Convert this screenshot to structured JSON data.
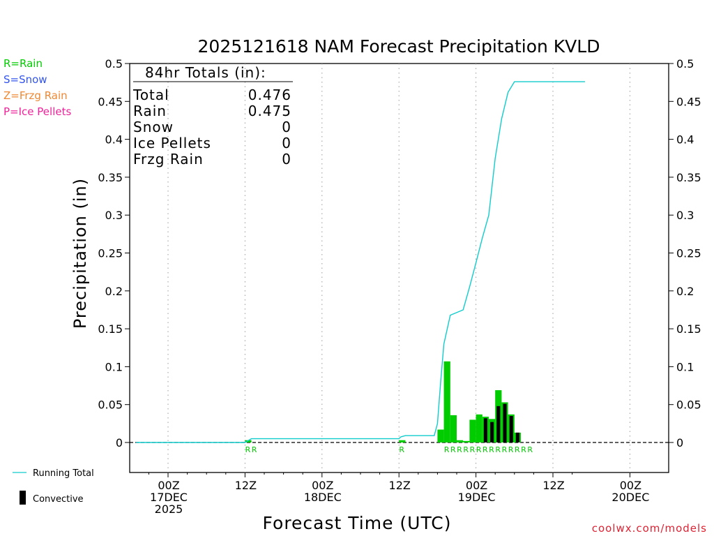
{
  "colors": {
    "rain": "#00cc00",
    "snow": "#3355ee",
    "frzg_rain": "#ee8833",
    "ice_pellets": "#ee2299",
    "running_total": "#11cccc",
    "convective": "#000000",
    "credit": "#dd2233"
  },
  "legend_ptypes": [
    {
      "text": "R=Rain",
      "color_key": "rain"
    },
    {
      "text": "S=Snow",
      "color_key": "snow"
    },
    {
      "text": "Z=Frzg Rain",
      "color_key": "frzg_rain"
    },
    {
      "text": "P=Ice Pellets",
      "color_key": "ice_pellets"
    }
  ],
  "legend_series": {
    "running_total": "Running Total",
    "convective": "Convective"
  },
  "credit": "coolwx.com/models",
  "chart_data": {
    "type": "bar",
    "title": "2025121618 NAM Forecast Precipitation KVLD",
    "xlabel": "Forecast Time (UTC)",
    "ylabel": "Precipitation (in)",
    "ylim": [
      -0.04,
      0.5
    ],
    "y_ticks": [
      "0",
      "0.05",
      "0.1",
      "0.15",
      "0.2",
      "0.25",
      "0.3",
      "0.35",
      "0.4",
      "0.45",
      "0.5"
    ],
    "y_tick_values": [
      0,
      0.05,
      0.1,
      0.15,
      0.2,
      0.25,
      0.3,
      0.35,
      0.4,
      0.45,
      0.5
    ],
    "x_range_hours": [
      -5,
      65
    ],
    "x_ticks": [
      {
        "hour": 0,
        "lines": [
          "00Z",
          "17DEC",
          "2025"
        ]
      },
      {
        "hour": 12,
        "lines": [
          "12Z"
        ]
      },
      {
        "hour": 24,
        "lines": [
          "00Z",
          "18DEC"
        ]
      },
      {
        "hour": 36,
        "lines": [
          "12Z"
        ]
      },
      {
        "hour": 48,
        "lines": [
          "00Z",
          "19DEC"
        ]
      },
      {
        "hour": 60,
        "lines": [
          "12Z"
        ]
      },
      {
        "hour": 72,
        "lines": [
          "00Z",
          "20DEC"
        ]
      }
    ],
    "totals": {
      "header": "84hr Totals (in):",
      "rows": [
        {
          "label": "Total",
          "value": "0.476"
        },
        {
          "label": "Rain",
          "value": "0.475"
        },
        {
          "label": "Snow",
          "value": "0"
        },
        {
          "label": "Ice Pellets",
          "value": "0"
        },
        {
          "label": "Frzg Rain",
          "value": "0"
        }
      ]
    },
    "bar_width_hours": 1,
    "series": [
      {
        "name": "Running Total",
        "type": "line",
        "x": [
          -5,
          12,
          13,
          36,
          36.3,
          37,
          41.5,
          42,
          42.5,
          43,
          44,
          46,
          47,
          48,
          49,
          50,
          51,
          52,
          53,
          54,
          55,
          55.5,
          56,
          65
        ],
        "y": [
          0,
          0,
          0.005,
          0.005,
          0.0075,
          0.009,
          0.009,
          0.025,
          0.08,
          0.13,
          0.168,
          0.175,
          0.205,
          0.237,
          0.27,
          0.3,
          0.375,
          0.427,
          0.462,
          0.476,
          0.476,
          0.476,
          0.476,
          0.476
        ]
      }
    ],
    "precip_bars": [
      {
        "x": 12.5,
        "y": 0.003
      },
      {
        "x": 36.5,
        "y": 0.003
      },
      {
        "x": 42.5,
        "y": 0.017
      },
      {
        "x": 43.5,
        "y": 0.107
      },
      {
        "x": 44.5,
        "y": 0.036
      },
      {
        "x": 45.5,
        "y": 0.003
      },
      {
        "x": 46.5,
        "y": 0.002
      },
      {
        "x": 47.5,
        "y": 0.03
      },
      {
        "x": 48.5,
        "y": 0.037
      },
      {
        "x": 49.5,
        "y": 0.034
      },
      {
        "x": 50.5,
        "y": 0.031
      },
      {
        "x": 51.5,
        "y": 0.069
      },
      {
        "x": 52.5,
        "y": 0.053
      },
      {
        "x": 53.5,
        "y": 0.037
      },
      {
        "x": 54.5,
        "y": 0.013
      }
    ],
    "convective_bars": [
      {
        "x": 49.5,
        "y": 0.032
      },
      {
        "x": 50.5,
        "y": 0.027
      },
      {
        "x": 51.5,
        "y": 0.048
      },
      {
        "x": 52.5,
        "y": 0.051
      },
      {
        "x": 53.5,
        "y": 0.035
      },
      {
        "x": 54.5,
        "y": 0.013
      }
    ],
    "ptype_labels": [
      {
        "x": 12,
        "text": "R"
      },
      {
        "x": 13,
        "text": "R"
      },
      {
        "x": 36,
        "text": "R"
      },
      {
        "x": 43,
        "text": "R"
      },
      {
        "x": 44,
        "text": "R"
      },
      {
        "x": 45,
        "text": "R"
      },
      {
        "x": 46,
        "text": "R"
      },
      {
        "x": 47,
        "text": "R"
      },
      {
        "x": 48,
        "text": "R"
      },
      {
        "x": 49,
        "text": "R"
      },
      {
        "x": 50,
        "text": "R"
      },
      {
        "x": 51,
        "text": "R"
      },
      {
        "x": 52,
        "text": "R"
      },
      {
        "x": 53,
        "text": "R"
      },
      {
        "x": 54,
        "text": "R"
      },
      {
        "x": 55,
        "text": "R"
      },
      {
        "x": 56,
        "text": "R"
      }
    ]
  }
}
